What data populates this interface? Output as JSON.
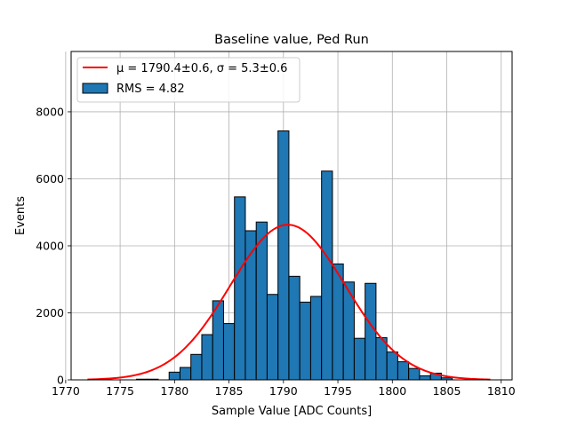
{
  "chart_data": {
    "type": "bar",
    "title": "Baseline value, Ped Run",
    "xlabel": "Sample Value [ADC Counts]",
    "ylabel": "Events",
    "xlim": [
      1770.5,
      1811.0
    ],
    "ylim": [
      0,
      9800
    ],
    "xticks": [
      1770,
      1775,
      1780,
      1785,
      1790,
      1795,
      1800,
      1805,
      1810
    ],
    "yticks": [
      0,
      2000,
      4000,
      6000,
      8000
    ],
    "grid": true,
    "legend_position": "top-left",
    "bin_width": 1.0,
    "bins": [
      {
        "left": 1776.5,
        "value": 20
      },
      {
        "left": 1777.5,
        "value": 20
      },
      {
        "left": 1779.5,
        "value": 230
      },
      {
        "left": 1780.5,
        "value": 370
      },
      {
        "left": 1781.5,
        "value": 760
      },
      {
        "left": 1782.5,
        "value": 1350
      },
      {
        "left": 1783.5,
        "value": 2360
      },
      {
        "left": 1784.5,
        "value": 1680
      },
      {
        "left": 1785.5,
        "value": 5460
      },
      {
        "left": 1786.5,
        "value": 4450
      },
      {
        "left": 1787.5,
        "value": 4710
      },
      {
        "left": 1788.5,
        "value": 2550
      },
      {
        "left": 1789.5,
        "value": 7430
      },
      {
        "left": 1790.5,
        "value": 3090
      },
      {
        "left": 1791.5,
        "value": 2320
      },
      {
        "left": 1792.5,
        "value": 2490
      },
      {
        "left": 1793.5,
        "value": 6230
      },
      {
        "left": 1794.5,
        "value": 3460
      },
      {
        "left": 1795.5,
        "value": 2920
      },
      {
        "left": 1796.5,
        "value": 1240
      },
      {
        "left": 1797.5,
        "value": 2880
      },
      {
        "left": 1798.5,
        "value": 1260
      },
      {
        "left": 1799.5,
        "value": 830
      },
      {
        "left": 1800.5,
        "value": 540
      },
      {
        "left": 1801.5,
        "value": 340
      },
      {
        "left": 1802.5,
        "value": 120
      },
      {
        "left": 1803.5,
        "value": 200
      },
      {
        "left": 1804.5,
        "value": 60
      }
    ],
    "fit": {
      "type": "gaussian",
      "mu": 1790.4,
      "sigma": 5.3,
      "amplitude": 4630,
      "x_range": [
        1772,
        1809
      ],
      "color": "#ff0000"
    },
    "bar_color": "#1f77b4",
    "legend": [
      {
        "label": "μ = 1790.4±0.6, σ = 5.3±0.6",
        "kind": "line",
        "color": "#ff0000"
      },
      {
        "label": "RMS = 4.82",
        "kind": "patch",
        "color": "#1f77b4"
      }
    ]
  }
}
